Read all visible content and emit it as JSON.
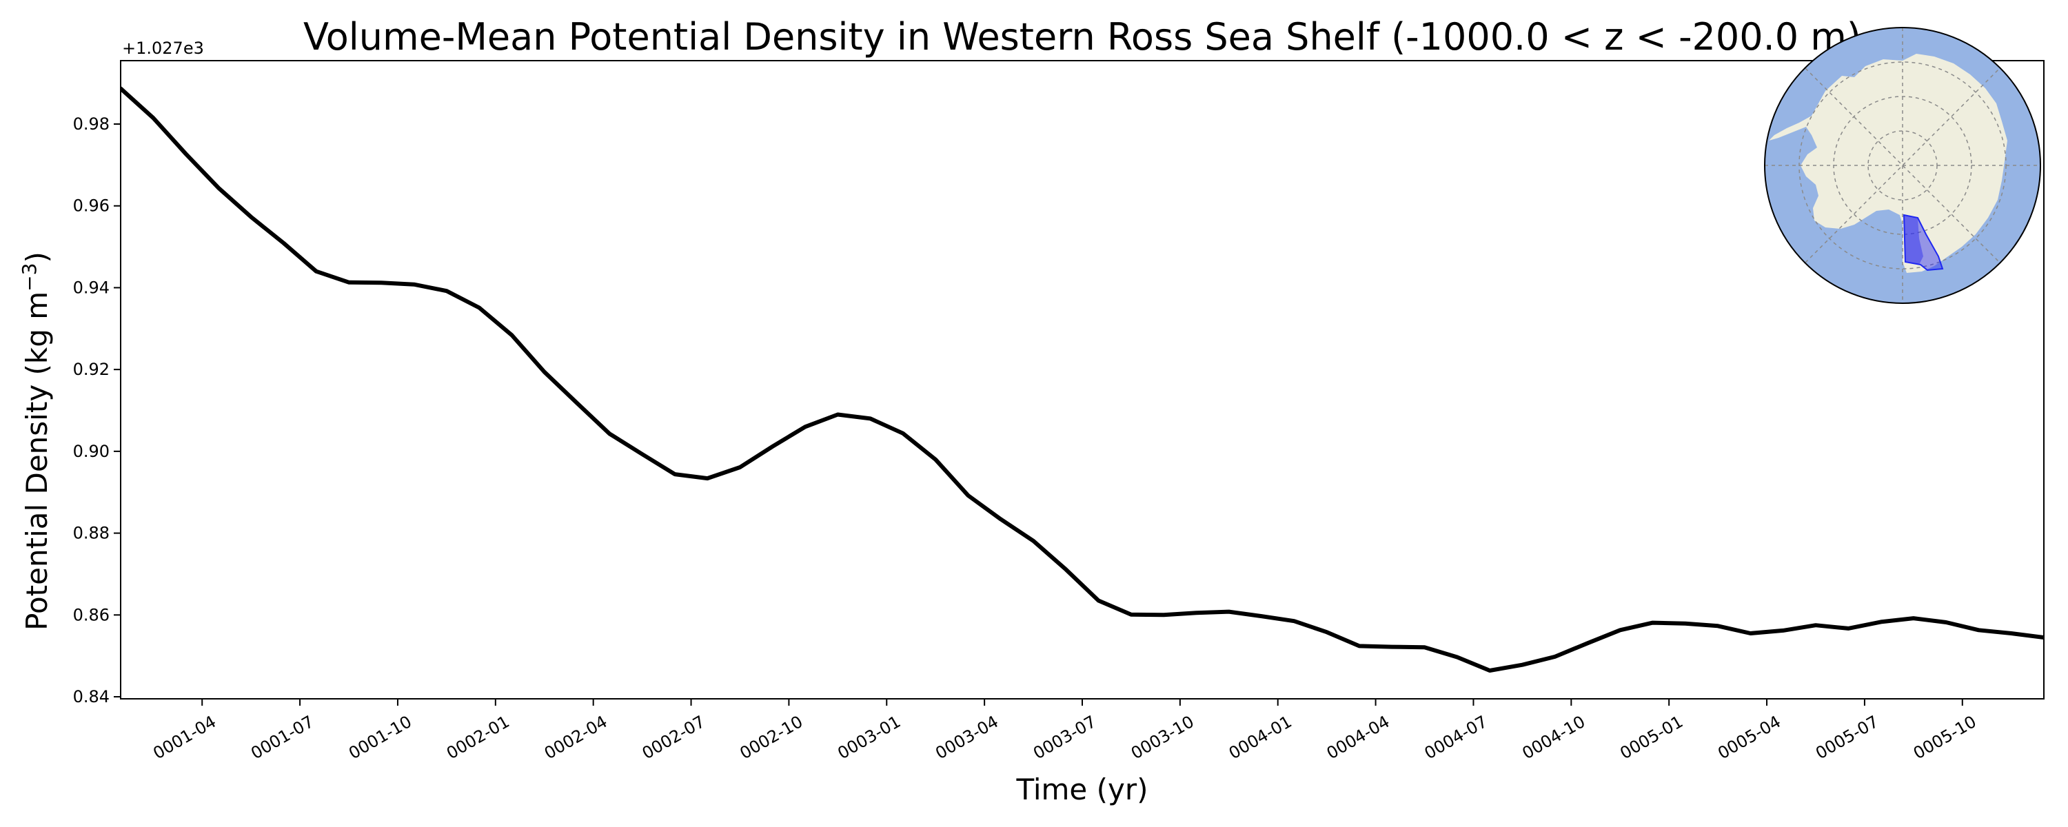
{
  "chart_data": {
    "type": "line",
    "title": "Volume-Mean Potential Density in Western Ross Sea Shelf (-1000.0 < z < -200.0 m)",
    "xlabel": "Time (yr)",
    "ylabel_main": "Potential Density (kg m",
    "ylabel_exp": "−3",
    "ylabel_close": ")",
    "y_offset_label": "+1.027e3",
    "xlim_months": [
      0.5,
      59.5
    ],
    "ylim": [
      0.8395,
      0.9955
    ],
    "x_ticks": [
      {
        "m": 3,
        "label": "0001-04"
      },
      {
        "m": 6,
        "label": "0001-07"
      },
      {
        "m": 9,
        "label": "0001-10"
      },
      {
        "m": 12,
        "label": "0002-01"
      },
      {
        "m": 15,
        "label": "0002-04"
      },
      {
        "m": 18,
        "label": "0002-07"
      },
      {
        "m": 21,
        "label": "0002-10"
      },
      {
        "m": 24,
        "label": "0003-01"
      },
      {
        "m": 27,
        "label": "0003-04"
      },
      {
        "m": 30,
        "label": "0003-07"
      },
      {
        "m": 33,
        "label": "0003-10"
      },
      {
        "m": 36,
        "label": "0004-01"
      },
      {
        "m": 39,
        "label": "0004-04"
      },
      {
        "m": 42,
        "label": "0004-07"
      },
      {
        "m": 45,
        "label": "0004-10"
      },
      {
        "m": 48,
        "label": "0005-01"
      },
      {
        "m": 51,
        "label": "0005-04"
      },
      {
        "m": 54,
        "label": "0005-07"
      },
      {
        "m": 57,
        "label": "0005-10"
      }
    ],
    "y_ticks": [
      0.84,
      0.86,
      0.88,
      0.9,
      0.92,
      0.94,
      0.96,
      0.98
    ],
    "y_tick_labels": [
      "0.84",
      "0.86",
      "0.88",
      "0.90",
      "0.92",
      "0.94",
      "0.96",
      "0.98"
    ],
    "series": [
      {
        "name": "volume-mean potential density",
        "color": "#000000",
        "x": [
          0.5,
          1.5,
          2.5,
          3.5,
          4.5,
          5.5,
          6.5,
          7.5,
          8.5,
          9.5,
          10.5,
          11.5,
          12.5,
          13.5,
          14.5,
          15.5,
          16.5,
          17.5,
          18.5,
          19.5,
          20.5,
          21.5,
          22.5,
          23.5,
          24.5,
          25.5,
          26.5,
          27.5,
          28.5,
          29.5,
          30.5,
          31.5,
          32.5,
          33.5,
          34.5,
          35.5,
          36.5,
          37.5,
          38.5,
          39.5,
          40.5,
          41.5,
          42.5,
          43.5,
          44.5,
          45.5,
          46.5,
          47.5,
          48.5,
          49.5,
          50.5,
          51.5,
          52.5,
          53.5,
          54.5,
          55.5,
          56.5,
          57.5,
          58.5,
          59.5
        ],
        "y": [
          0.9887,
          0.9815,
          0.9727,
          0.9644,
          0.9573,
          0.9509,
          0.944,
          0.9413,
          0.9412,
          0.9408,
          0.9392,
          0.9351,
          0.9284,
          0.9194,
          0.9118,
          0.9043,
          0.8993,
          0.8944,
          0.8934,
          0.8961,
          0.9012,
          0.906,
          0.909,
          0.908,
          0.9044,
          0.898,
          0.8892,
          0.8834,
          0.8781,
          0.8711,
          0.8635,
          0.8601,
          0.86,
          0.8605,
          0.8608,
          0.8597,
          0.8585,
          0.8558,
          0.8524,
          0.8522,
          0.8521,
          0.8497,
          0.8464,
          0.8478,
          0.8498,
          0.8531,
          0.8563,
          0.8581,
          0.8579,
          0.8573,
          0.8555,
          0.8562,
          0.8575,
          0.8567,
          0.8583,
          0.8592,
          0.8582,
          0.8563,
          0.8555,
          0.8545
        ]
      }
    ]
  },
  "inset_map": {
    "ocean_color": "#96b4e4",
    "land_color": "#efeede",
    "region_color": "#1e28f0",
    "region_fill": "rgba(40,40,240,0.45)"
  }
}
